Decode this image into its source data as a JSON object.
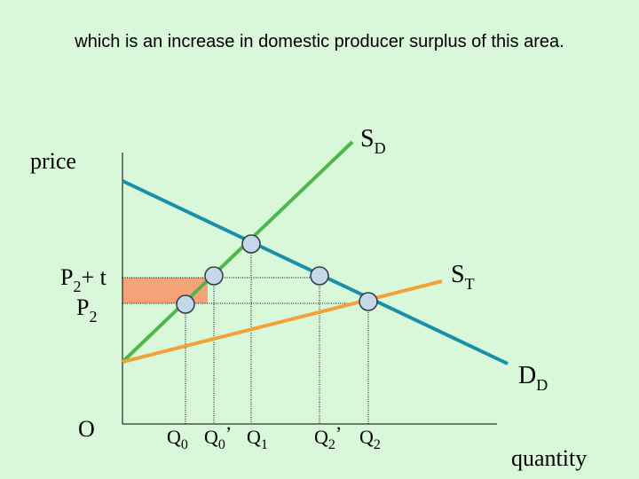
{
  "caption": "which is an increase in domestic producer surplus of this area.",
  "labels": {
    "price": "price",
    "quantity": "quantity",
    "origin": "O",
    "supply_domestic": {
      "main": "S",
      "sub": "D"
    },
    "supply_tariff": {
      "main": "S",
      "sub": "T"
    },
    "demand_domestic": {
      "main": "D",
      "sub": "D"
    },
    "price_tariff": {
      "main": "P",
      "sub": "2",
      "rest": "+ t"
    },
    "price_world": {
      "main": "P",
      "sub": "2"
    },
    "q0": {
      "main": "Q",
      "sub": "0"
    },
    "q0_prime": {
      "main": "Q",
      "sub": "0",
      "rest": "’"
    },
    "q1": {
      "main": "Q",
      "sub": "1"
    },
    "q2_prime": {
      "main": "Q",
      "sub": "2",
      "rest": "’"
    },
    "q2": {
      "main": "Q",
      "sub": "2"
    }
  },
  "colors": {
    "background": "#d9f7d9",
    "supply_domestic": "#4cb848",
    "demand_domestic": "#1a8fa8",
    "supply_tariff": "#f2a23a",
    "surplus_area": "#f7a37a",
    "marker": "#c5d8ea"
  }
}
